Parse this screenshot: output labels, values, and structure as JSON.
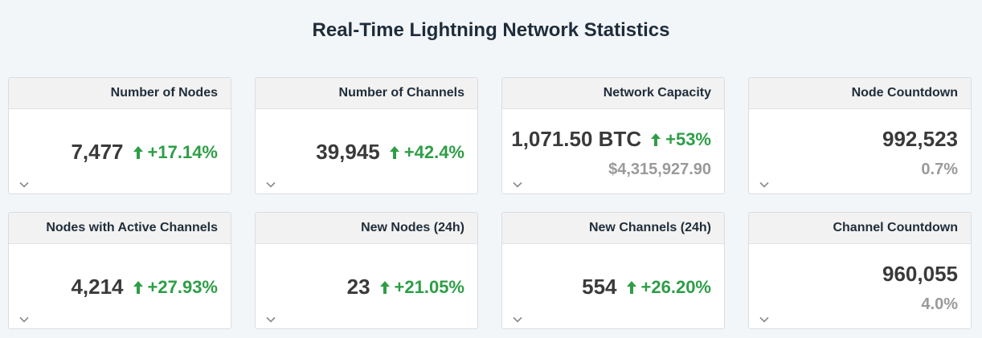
{
  "page": {
    "title": "Real-Time Lightning Network Statistics"
  },
  "colors": {
    "background": "#f3f6f9",
    "positive": "#2e9e46",
    "muted": "#9a9a9a",
    "card_header": "#f2f2f2"
  },
  "cards": [
    {
      "title": "Number of Nodes",
      "value": "7,477",
      "change": "+17.14%",
      "change_icon": "arrow-up-icon",
      "sub": ""
    },
    {
      "title": "Number of Channels",
      "value": "39,945",
      "change": "+42.4%",
      "change_icon": "arrow-up-icon",
      "sub": ""
    },
    {
      "title": "Network Capacity",
      "value": "1,071.50 BTC",
      "change": "+53%",
      "change_icon": "arrow-up-icon",
      "sub": "$4,315,927.90"
    },
    {
      "title": "Node Countdown",
      "value": "992,523",
      "change": "",
      "sub": "0.7%"
    },
    {
      "title": "Nodes with Active Channels",
      "value": "4,214",
      "change": "+27.93%",
      "change_icon": "arrow-up-icon",
      "sub": ""
    },
    {
      "title": "New Nodes (24h)",
      "value": "23",
      "change": "+21.05%",
      "change_icon": "arrow-up-icon",
      "sub": ""
    },
    {
      "title": "New Channels (24h)",
      "value": "554",
      "change": "+26.20%",
      "change_icon": "arrow-up-icon",
      "sub": ""
    },
    {
      "title": "Channel Countdown",
      "value": "960,055",
      "change": "",
      "sub": "4.0%"
    }
  ]
}
